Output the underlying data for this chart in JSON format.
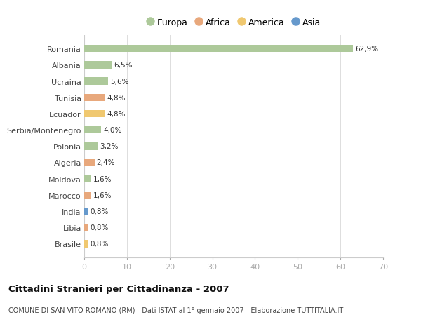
{
  "title": "Cittadini Stranieri per Cittadinanza - 2007",
  "subtitle": "COMUNE DI SAN VITO ROMANO (RM) - Dati ISTAT al 1° gennaio 2007 - Elaborazione TUTTITALIA.IT",
  "countries": [
    "Romania",
    "Albania",
    "Ucraina",
    "Tunisia",
    "Ecuador",
    "Serbia/Montenegro",
    "Polonia",
    "Algeria",
    "Moldova",
    "Marocco",
    "India",
    "Libia",
    "Brasile"
  ],
  "values": [
    62.9,
    6.5,
    5.6,
    4.8,
    4.8,
    4.0,
    3.2,
    2.4,
    1.6,
    1.6,
    0.8,
    0.8,
    0.8
  ],
  "labels": [
    "62,9%",
    "6,5%",
    "5,6%",
    "4,8%",
    "4,8%",
    "4,0%",
    "3,2%",
    "2,4%",
    "1,6%",
    "1,6%",
    "0,8%",
    "0,8%",
    "0,8%"
  ],
  "continents": [
    "Europa",
    "Europa",
    "Europa",
    "Africa",
    "America",
    "Europa",
    "Europa",
    "Africa",
    "Europa",
    "Africa",
    "Asia",
    "Africa",
    "America"
  ],
  "colors": {
    "Europa": "#adc99a",
    "Africa": "#e8a87c",
    "America": "#f0c870",
    "Asia": "#6699cc"
  },
  "legend_order": [
    "Europa",
    "Africa",
    "America",
    "Asia"
  ],
  "xlim": [
    0,
    70
  ],
  "xticks": [
    0,
    10,
    20,
    30,
    40,
    50,
    60,
    70
  ],
  "background_color": "#ffffff",
  "grid_color": "#dddddd",
  "bar_height": 0.45
}
